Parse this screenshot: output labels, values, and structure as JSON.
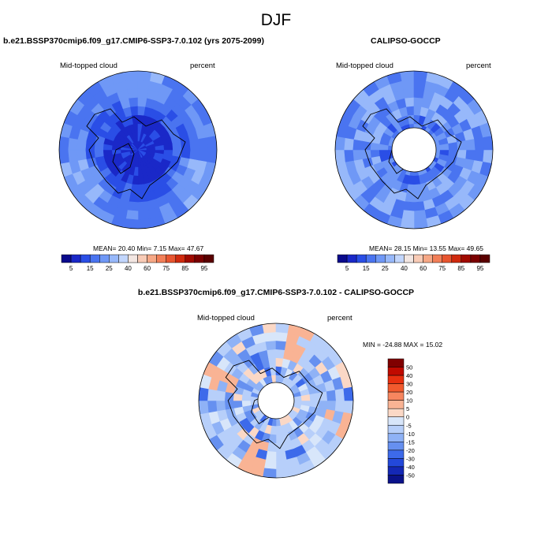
{
  "title": "DJF",
  "panels": {
    "model": {
      "title": "b.e21.BSSP370cmip6.f09_g17.CMIP6-SSP3-7.0.102 (yrs 2075-2099)",
      "left_label": "Mid-topped cloud",
      "right_label": "percent",
      "stats": {
        "mean_label": "MEAN=",
        "mean": "20.40",
        "min_label": "Min=",
        "min": "7.15",
        "max_label": "Max=",
        "max": "47.67"
      }
    },
    "obs": {
      "title": "CALIPSO-GOCCP",
      "left_label": "Mid-topped cloud",
      "right_label": "percent",
      "stats": {
        "mean_label": "MEAN=",
        "mean": "28.15",
        "min_label": "Min=",
        "min": "13.55",
        "max_label": "Max=",
        "max": "49.65"
      }
    },
    "diff": {
      "title": "b.e21.BSSP370cmip6.f09_g17.CMIP6-SSP3-7.0.102 - CALIPSO-GOCCP",
      "left_label": "Mid-topped cloud",
      "right_label": "percent",
      "stats": {
        "text": "MIN = -24.88 MAX =  15.02"
      }
    }
  },
  "chart_data": [
    {
      "type": "heatmap",
      "projection": "north polar stereographic",
      "title": "b.e21.BSSP370cmip6.f09_g17.CMIP6-SSP3-7.0.102 (yrs 2075-2099)",
      "variable": "Mid-topped cloud",
      "units": "percent",
      "mean": 20.4,
      "min": 7.15,
      "max": 47.67,
      "colorbar_ticks": [
        5,
        15,
        25,
        40,
        60,
        75,
        85,
        95
      ],
      "colorbar_levels": [
        0,
        5,
        10,
        15,
        20,
        25,
        30,
        40,
        50,
        60,
        70,
        75,
        80,
        85,
        90,
        95,
        100
      ]
    },
    {
      "type": "heatmap",
      "projection": "north polar stereographic",
      "title": "CALIPSO-GOCCP",
      "variable": "Mid-topped cloud",
      "units": "percent",
      "mean": 28.15,
      "min": 13.55,
      "max": 49.65,
      "colorbar_ticks": [
        5,
        15,
        25,
        40,
        60,
        75,
        85,
        95
      ],
      "colorbar_levels": [
        0,
        5,
        10,
        15,
        20,
        25,
        30,
        40,
        50,
        60,
        70,
        75,
        80,
        85,
        90,
        95,
        100
      ],
      "missing_data_pole": true
    },
    {
      "type": "heatmap",
      "projection": "north polar stereographic",
      "title": "b.e21.BSSP370cmip6.f09_g17.CMIP6-SSP3-7.0.102 - CALIPSO-GOCCP",
      "variable": "Mid-topped cloud",
      "units": "percent",
      "min": -24.88,
      "max": 15.02,
      "colorbar_ticks": [
        50,
        40,
        30,
        20,
        10,
        5,
        0,
        -5,
        -10,
        -15,
        -20,
        -30,
        -40,
        -50
      ],
      "colorbar_orientation": "vertical",
      "missing_data_pole": true
    }
  ],
  "colors": {
    "seq": [
      "#0a0a8c",
      "#1a28c8",
      "#2a4ee6",
      "#4a74f0",
      "#6f98f6",
      "#97b8fa",
      "#c2d6fc",
      "#f2e6e2",
      "#f8cbb6",
      "#f6a886",
      "#f27f58",
      "#e85530",
      "#d02a0e",
      "#a00a00",
      "#7a0000",
      "#5a0000"
    ],
    "div": [
      "#800000",
      "#c00a00",
      "#e83010",
      "#f25a2e",
      "#f7865f",
      "#f9b394",
      "#fbd8c6",
      "#d8e6fa",
      "#b7cffa",
      "#8fb2f6",
      "#6690f0",
      "#3d6aea",
      "#2348da",
      "#1428b6",
      "#0a128a"
    ]
  }
}
